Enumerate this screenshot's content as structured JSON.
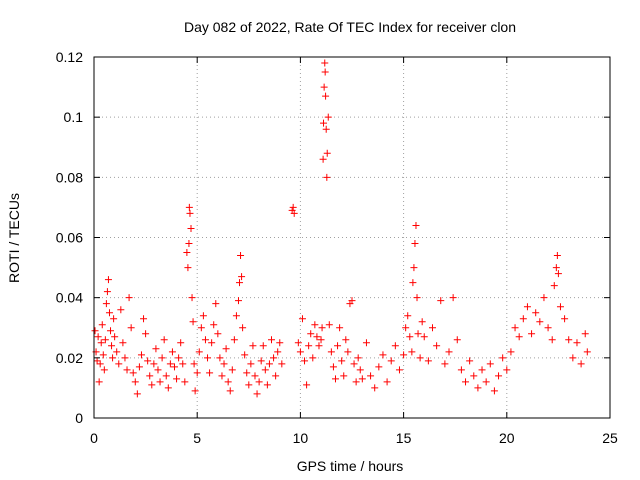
{
  "chart_data": {
    "type": "scatter",
    "title": "Day 082 of 2022, Rate Of TEC Index for receiver clon",
    "xlabel": "GPS time / hours",
    "ylabel": "ROTI / TECUs",
    "xlim": [
      0,
      25
    ],
    "ylim": [
      0,
      0.12
    ],
    "xticks": [
      0,
      5,
      10,
      15,
      20,
      25
    ],
    "xtick_labels": [
      "0",
      "5",
      "10",
      "15",
      "20",
      "25"
    ],
    "yticks": [
      0,
      0.02,
      0.04,
      0.06,
      0.08,
      0.1,
      0.12
    ],
    "ytick_labels": [
      "0",
      "0.02",
      "0.04",
      "0.06",
      "0.08",
      "0.1",
      "0.12"
    ],
    "grid": true,
    "marker": "+",
    "color": "#ff0000",
    "series": [
      {
        "points": [
          [
            0.05,
            0.029
          ],
          [
            0.1,
            0.022
          ],
          [
            0.15,
            0.019
          ],
          [
            0.2,
            0.027
          ],
          [
            0.25,
            0.012
          ],
          [
            0.3,
            0.018
          ],
          [
            0.35,
            0.025
          ],
          [
            0.4,
            0.031
          ],
          [
            0.45,
            0.021
          ],
          [
            0.5,
            0.016
          ],
          [
            0.55,
            0.026
          ],
          [
            0.6,
            0.038
          ],
          [
            0.65,
            0.042
          ],
          [
            0.7,
            0.046
          ],
          [
            0.75,
            0.035
          ],
          [
            0.8,
            0.029
          ],
          [
            0.85,
            0.024
          ],
          [
            0.9,
            0.02
          ],
          [
            0.95,
            0.033
          ],
          [
            1.0,
            0.027
          ],
          [
            1.1,
            0.022
          ],
          [
            1.2,
            0.018
          ],
          [
            1.3,
            0.036
          ],
          [
            1.4,
            0.025
          ],
          [
            1.5,
            0.02
          ],
          [
            1.6,
            0.016
          ],
          [
            1.7,
            0.04
          ],
          [
            1.8,
            0.03
          ],
          [
            1.9,
            0.015
          ],
          [
            2.0,
            0.012
          ],
          [
            2.1,
            0.008
          ],
          [
            2.2,
            0.017
          ],
          [
            2.3,
            0.021
          ],
          [
            2.4,
            0.033
          ],
          [
            2.5,
            0.028
          ],
          [
            2.6,
            0.019
          ],
          [
            2.7,
            0.014
          ],
          [
            2.8,
            0.011
          ],
          [
            2.9,
            0.018
          ],
          [
            3.0,
            0.023
          ],
          [
            3.1,
            0.016
          ],
          [
            3.2,
            0.012
          ],
          [
            3.3,
            0.02
          ],
          [
            3.4,
            0.026
          ],
          [
            3.5,
            0.014
          ],
          [
            3.6,
            0.01
          ],
          [
            3.7,
            0.018
          ],
          [
            3.8,
            0.022
          ],
          [
            3.9,
            0.017
          ],
          [
            4.0,
            0.013
          ],
          [
            4.1,
            0.02
          ],
          [
            4.2,
            0.025
          ],
          [
            4.3,
            0.018
          ],
          [
            4.4,
            0.012
          ],
          [
            4.5,
            0.055
          ],
          [
            4.55,
            0.05
          ],
          [
            4.6,
            0.058
          ],
          [
            4.62,
            0.07
          ],
          [
            4.65,
            0.068
          ],
          [
            4.7,
            0.063
          ],
          [
            4.75,
            0.04
          ],
          [
            4.8,
            0.032
          ],
          [
            4.85,
            0.018
          ],
          [
            4.9,
            0.009
          ],
          [
            5.0,
            0.015
          ],
          [
            5.1,
            0.022
          ],
          [
            5.2,
            0.03
          ],
          [
            5.3,
            0.034
          ],
          [
            5.4,
            0.026
          ],
          [
            5.5,
            0.02
          ],
          [
            5.6,
            0.015
          ],
          [
            5.7,
            0.025
          ],
          [
            5.8,
            0.031
          ],
          [
            5.9,
            0.038
          ],
          [
            6.0,
            0.028
          ],
          [
            6.1,
            0.02
          ],
          [
            6.2,
            0.014
          ],
          [
            6.3,
            0.018
          ],
          [
            6.4,
            0.023
          ],
          [
            6.5,
            0.012
          ],
          [
            6.6,
            0.009
          ],
          [
            6.7,
            0.016
          ],
          [
            6.8,
            0.026
          ],
          [
            6.9,
            0.034
          ],
          [
            7.0,
            0.039
          ],
          [
            7.05,
            0.045
          ],
          [
            7.1,
            0.054
          ],
          [
            7.15,
            0.047
          ],
          [
            7.2,
            0.03
          ],
          [
            7.3,
            0.021
          ],
          [
            7.4,
            0.015
          ],
          [
            7.5,
            0.011
          ],
          [
            7.6,
            0.018
          ],
          [
            7.7,
            0.024
          ],
          [
            7.8,
            0.014
          ],
          [
            7.9,
            0.008
          ],
          [
            8.0,
            0.012
          ],
          [
            8.1,
            0.019
          ],
          [
            8.2,
            0.024
          ],
          [
            8.3,
            0.016
          ],
          [
            8.4,
            0.011
          ],
          [
            8.5,
            0.018
          ],
          [
            8.6,
            0.026
          ],
          [
            8.7,
            0.02
          ],
          [
            8.8,
            0.014
          ],
          [
            8.9,
            0.022
          ],
          [
            9.0,
            0.025
          ],
          [
            9.1,
            0.018
          ],
          [
            9.6,
            0.069
          ],
          [
            9.65,
            0.07
          ],
          [
            9.7,
            0.068
          ],
          [
            9.9,
            0.025
          ],
          [
            10.0,
            0.022
          ],
          [
            10.1,
            0.033
          ],
          [
            10.2,
            0.019
          ],
          [
            10.3,
            0.011
          ],
          [
            10.4,
            0.024
          ],
          [
            10.5,
            0.028
          ],
          [
            10.6,
            0.02
          ],
          [
            10.7,
            0.031
          ],
          [
            10.8,
            0.027
          ],
          [
            10.9,
            0.024
          ],
          [
            11.0,
            0.026
          ],
          [
            11.05,
            0.03
          ],
          [
            11.1,
            0.086
          ],
          [
            11.12,
            0.098
          ],
          [
            11.15,
            0.11
          ],
          [
            11.18,
            0.118
          ],
          [
            11.2,
            0.115
          ],
          [
            11.22,
            0.107
          ],
          [
            11.25,
            0.096
          ],
          [
            11.28,
            0.08
          ],
          [
            11.3,
            0.088
          ],
          [
            11.35,
            0.1
          ],
          [
            11.4,
            0.031
          ],
          [
            11.5,
            0.022
          ],
          [
            11.6,
            0.017
          ],
          [
            11.7,
            0.013
          ],
          [
            11.8,
            0.024
          ],
          [
            11.9,
            0.03
          ],
          [
            12.0,
            0.019
          ],
          [
            12.1,
            0.014
          ],
          [
            12.2,
            0.026
          ],
          [
            12.3,
            0.022
          ],
          [
            12.4,
            0.038
          ],
          [
            12.5,
            0.039
          ],
          [
            12.6,
            0.018
          ],
          [
            12.7,
            0.012
          ],
          [
            12.8,
            0.02
          ],
          [
            12.9,
            0.016
          ],
          [
            13.0,
            0.013
          ],
          [
            13.2,
            0.025
          ],
          [
            13.4,
            0.014
          ],
          [
            13.6,
            0.01
          ],
          [
            13.8,
            0.017
          ],
          [
            14.0,
            0.021
          ],
          [
            14.2,
            0.012
          ],
          [
            14.4,
            0.019
          ],
          [
            14.6,
            0.024
          ],
          [
            14.8,
            0.016
          ],
          [
            15.0,
            0.021
          ],
          [
            15.1,
            0.03
          ],
          [
            15.2,
            0.034
          ],
          [
            15.3,
            0.027
          ],
          [
            15.4,
            0.022
          ],
          [
            15.45,
            0.045
          ],
          [
            15.5,
            0.05
          ],
          [
            15.55,
            0.058
          ],
          [
            15.6,
            0.064
          ],
          [
            15.65,
            0.04
          ],
          [
            15.7,
            0.028
          ],
          [
            15.8,
            0.02
          ],
          [
            15.9,
            0.032
          ],
          [
            16.0,
            0.027
          ],
          [
            16.2,
            0.019
          ],
          [
            16.4,
            0.03
          ],
          [
            16.6,
            0.024
          ],
          [
            16.8,
            0.039
          ],
          [
            17.0,
            0.018
          ],
          [
            17.2,
            0.022
          ],
          [
            17.4,
            0.04
          ],
          [
            17.6,
            0.026
          ],
          [
            17.8,
            0.016
          ],
          [
            18.0,
            0.012
          ],
          [
            18.2,
            0.019
          ],
          [
            18.4,
            0.014
          ],
          [
            18.6,
            0.01
          ],
          [
            18.8,
            0.016
          ],
          [
            19.0,
            0.012
          ],
          [
            19.2,
            0.018
          ],
          [
            19.4,
            0.009
          ],
          [
            19.6,
            0.014
          ],
          [
            19.8,
            0.02
          ],
          [
            20.0,
            0.016
          ],
          [
            20.2,
            0.022
          ],
          [
            20.4,
            0.03
          ],
          [
            20.6,
            0.027
          ],
          [
            20.8,
            0.033
          ],
          [
            21.0,
            0.037
          ],
          [
            21.2,
            0.028
          ],
          [
            21.4,
            0.035
          ],
          [
            21.6,
            0.032
          ],
          [
            21.8,
            0.04
          ],
          [
            22.0,
            0.03
          ],
          [
            22.2,
            0.026
          ],
          [
            22.3,
            0.044
          ],
          [
            22.4,
            0.05
          ],
          [
            22.45,
            0.054
          ],
          [
            22.5,
            0.048
          ],
          [
            22.6,
            0.037
          ],
          [
            22.8,
            0.033
          ],
          [
            23.0,
            0.026
          ],
          [
            23.2,
            0.02
          ],
          [
            23.4,
            0.025
          ],
          [
            23.6,
            0.018
          ],
          [
            23.8,
            0.028
          ],
          [
            23.9,
            0.022
          ]
        ]
      }
    ]
  }
}
